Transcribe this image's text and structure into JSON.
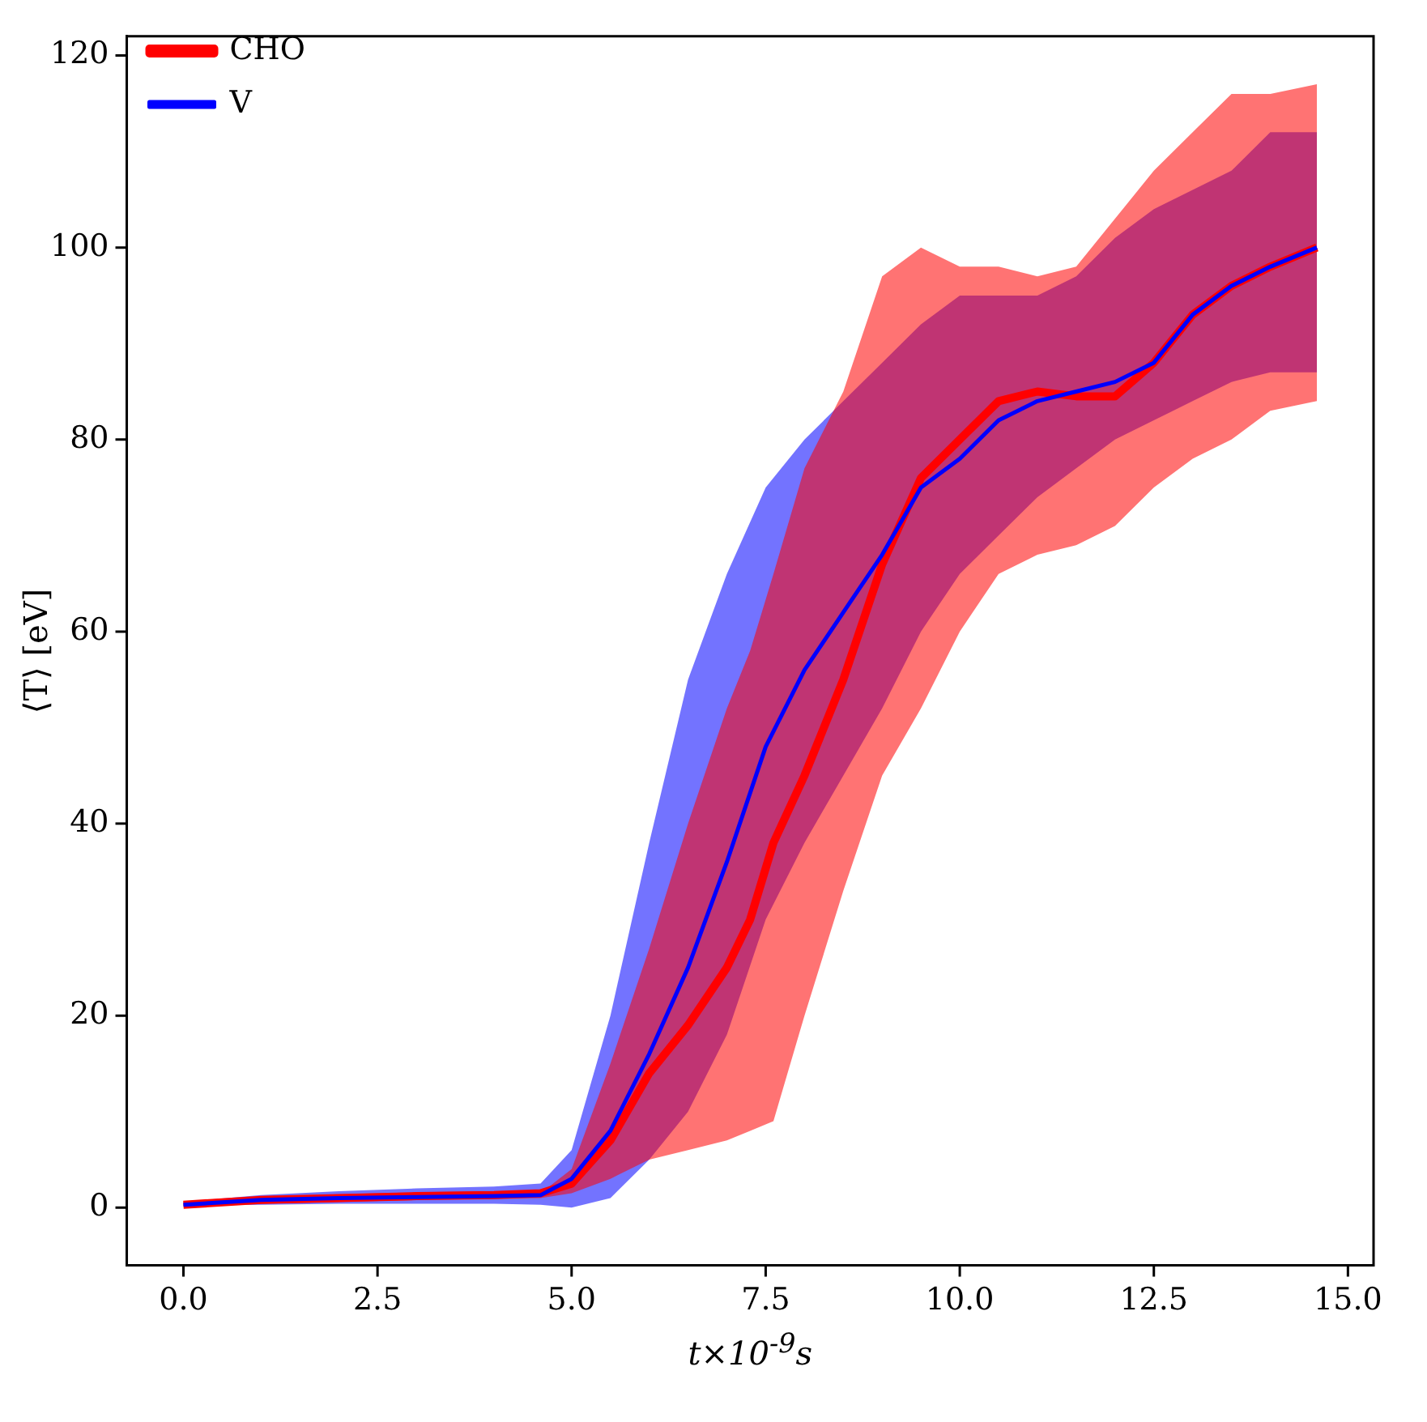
{
  "chart_data": {
    "type": "line",
    "xlabel": "t×10$^{-9}$s",
    "ylabel": "⟨T⟩ [eV]",
    "xlim": [
      -0.73,
      15.33
    ],
    "ylim": [
      -6,
      122
    ],
    "xticks": [
      {
        "value": 0,
        "label": "0.0"
      },
      {
        "value": 2.5,
        "label": "2.5"
      },
      {
        "value": 5,
        "label": "5.0"
      },
      {
        "value": 7.5,
        "label": "7.5"
      },
      {
        "value": 10,
        "label": "10.0"
      },
      {
        "value": 12.5,
        "label": "12.5"
      },
      {
        "value": 15,
        "label": "15.0"
      }
    ],
    "yticks": [
      0,
      20,
      40,
      60,
      80,
      100,
      120
    ],
    "grid": false,
    "legend": "top left",
    "marker": "none",
    "line_style": "solid",
    "series": [
      {
        "name": "CHO",
        "color": "#ff0000",
        "x": [
          0,
          1,
          2,
          3,
          4,
          4.6,
          5,
          5.5,
          6,
          6.5,
          7,
          7.3,
          7.6,
          8,
          8.5,
          9,
          9.5,
          10,
          10.5,
          11,
          11.5,
          12,
          12.5,
          13,
          13.5,
          14,
          14.6
        ],
        "values": [
          0.3,
          0.8,
          1,
          1.2,
          1.3,
          1.5,
          2.5,
          7,
          14,
          19,
          25,
          30,
          38,
          45,
          55,
          67,
          76,
          80,
          84,
          85,
          84.5,
          84.5,
          88,
          93,
          96,
          98,
          100
        ],
        "lower": [
          0.2,
          0.4,
          0.6,
          0.8,
          0.9,
          1,
          1.5,
          3,
          5,
          6,
          7,
          8,
          9,
          20,
          33,
          45,
          52,
          60,
          66,
          68,
          69,
          71,
          75,
          78,
          80,
          83,
          84
        ],
        "upper": [
          0.5,
          1.1,
          1.4,
          1.6,
          1.7,
          1.5,
          4,
          15,
          27,
          40,
          52,
          58,
          66,
          77,
          85,
          97,
          100,
          98,
          98,
          97,
          98,
          103,
          108,
          112,
          116,
          116,
          117
        ]
      },
      {
        "name": "V",
        "color": "#0000ff",
        "x": [
          0,
          1,
          2,
          3,
          4,
          4.6,
          5,
          5.5,
          6,
          6.5,
          7,
          7.5,
          8,
          8.5,
          9,
          9.5,
          10,
          10.5,
          11,
          11.5,
          12,
          12.5,
          13,
          13.5,
          14,
          14.6
        ],
        "values": [
          0.3,
          0.8,
          1,
          1.1,
          1.2,
          1.3,
          3,
          8,
          16,
          25,
          36,
          48,
          56,
          62,
          68,
          75,
          78,
          82,
          84,
          85,
          86,
          88,
          93,
          96,
          98,
          100
        ],
        "lower": [
          0.2,
          0.3,
          0.4,
          0.4,
          0.4,
          0.3,
          0,
          1,
          5,
          10,
          18,
          30,
          38,
          45,
          52,
          60,
          66,
          70,
          74,
          77,
          80,
          82,
          84,
          86,
          87,
          87
        ],
        "upper": [
          0.6,
          1.3,
          1.7,
          2,
          2.2,
          2.5,
          6,
          20,
          38,
          55,
          66,
          75,
          80,
          84,
          88,
          92,
          95,
          95,
          95,
          97,
          101,
          104,
          106,
          108,
          112,
          112
        ]
      }
    ]
  }
}
